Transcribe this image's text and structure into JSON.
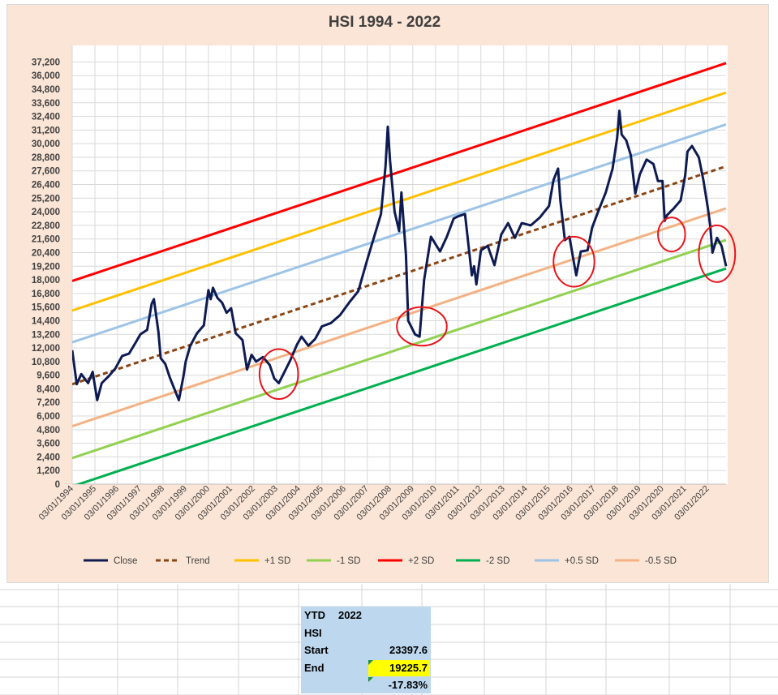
{
  "chart_data": {
    "type": "line",
    "title": "HSI  1994 - 2022",
    "y_ticks": [
      "0",
      "1,200",
      "2,400",
      "3,600",
      "4,800",
      "6,000",
      "7,200",
      "8,400",
      "9,600",
      "10,800",
      "12,000",
      "13,200",
      "14,400",
      "15,600",
      "16,800",
      "18,000",
      "19,200",
      "20,400",
      "21,600",
      "22,800",
      "24,000",
      "25,200",
      "26,400",
      "27,600",
      "28,800",
      "30,000",
      "31,200",
      "32,400",
      "33,600",
      "34,800",
      "36,000",
      "37,200"
    ],
    "ylim": [
      0,
      37800
    ],
    "xlim": [
      1994.0,
      2022.8
    ],
    "x_ticks": [
      "03/01/1994",
      "03/01/1995",
      "03/01/1996",
      "03/01/1997",
      "03/01/1998",
      "03/01/1999",
      "03/01/2000",
      "03/01/2001",
      "03/01/2002",
      "03/01/2003",
      "03/01/2004",
      "03/01/2005",
      "03/01/2006",
      "03/01/2007",
      "03/01/2008",
      "03/01/2009",
      "03/01/2010",
      "03/01/2011",
      "03/01/2012",
      "03/01/2013",
      "03/01/2014",
      "03/01/2015",
      "03/01/2016",
      "03/01/2017",
      "03/01/2018",
      "03/01/2019",
      "03/01/2020",
      "03/01/2021",
      "03/01/2022"
    ],
    "grid": true,
    "legend_position": "bottom",
    "close_color": "#0d1b52",
    "trend_color": "#8b4513",
    "circle_color": "#e8141b",
    "series": [
      {
        "name": "Close",
        "color": "#0d1b52",
        "x": [
          1994.0,
          1994.2,
          1994.4,
          1994.7,
          1994.9,
          1995.1,
          1995.3,
          1995.6,
          1995.9,
          1996.2,
          1996.5,
          1996.8,
          1997.0,
          1997.3,
          1997.5,
          1997.6,
          1997.8,
          1997.9,
          1998.1,
          1998.3,
          1998.5,
          1998.7,
          1998.9,
          1999.0,
          1999.2,
          1999.5,
          1999.8,
          2000.0,
          2000.1,
          2000.2,
          2000.4,
          2000.6,
          2000.8,
          2001.0,
          2001.2,
          2001.5,
          2001.7,
          2001.9,
          2002.1,
          2002.4,
          2002.7,
          2002.9,
          2003.1,
          2003.3,
          2003.6,
          2003.9,
          2004.1,
          2004.4,
          2004.7,
          2005.0,
          2005.4,
          2005.8,
          2006.2,
          2006.6,
          2007.0,
          2007.3,
          2007.6,
          2007.8,
          2007.9,
          2008.0,
          2008.2,
          2008.4,
          2008.5,
          2008.7,
          2008.8,
          2008.9,
          2009.1,
          2009.3,
          2009.5,
          2009.8,
          2010.2,
          2010.5,
          2010.8,
          2011.0,
          2011.3,
          2011.6,
          2011.7,
          2011.8,
          2012.0,
          2012.3,
          2012.6,
          2012.9,
          2013.2,
          2013.5,
          2013.8,
          2014.2,
          2014.6,
          2015.0,
          2015.2,
          2015.4,
          2015.5,
          2015.7,
          2015.9,
          2016.1,
          2016.2,
          2016.4,
          2016.7,
          2016.9,
          2017.2,
          2017.5,
          2017.8,
          2018.0,
          2018.1,
          2018.2,
          2018.4,
          2018.6,
          2018.8,
          2019.0,
          2019.3,
          2019.6,
          2019.8,
          2020.0,
          2020.1,
          2020.2,
          2020.5,
          2020.8,
          2021.0,
          2021.1,
          2021.3,
          2021.6,
          2021.8,
          2022.0,
          2022.1,
          2022.2,
          2022.4,
          2022.6,
          2022.8
        ],
        "y": [
          11800,
          8800,
          9700,
          8900,
          9900,
          7400,
          8900,
          9500,
          10200,
          11300,
          11500,
          12500,
          13200,
          13600,
          15900,
          16300,
          13400,
          11100,
          10600,
          9400,
          8400,
          7400,
          9500,
          10800,
          12200,
          13300,
          14000,
          17100,
          16300,
          17300,
          16400,
          16000,
          15100,
          15500,
          13300,
          12700,
          10100,
          11400,
          10800,
          11200,
          10500,
          9300,
          8900,
          9700,
          10900,
          12300,
          13000,
          12200,
          12800,
          13900,
          14200,
          14900,
          16000,
          17000,
          19800,
          21800,
          23800,
          28000,
          31500,
          28500,
          24000,
          22300,
          25700,
          20200,
          14400,
          14000,
          13200,
          13000,
          18000,
          21800,
          20500,
          21800,
          23400,
          23600,
          23800,
          18400,
          19200,
          17600,
          20600,
          21000,
          19300,
          22000,
          23000,
          21700,
          23000,
          22800,
          23500,
          24500,
          26800,
          27800,
          25000,
          21500,
          21800,
          19500,
          18400,
          20500,
          20600,
          22600,
          24200,
          25700,
          27800,
          30500,
          32900,
          30800,
          30300,
          29000,
          25600,
          27300,
          28600,
          28200,
          26700,
          26700,
          23200,
          23700,
          24300,
          25000,
          27200,
          29300,
          29800,
          28800,
          26800,
          24300,
          22800,
          20400,
          21700,
          21000,
          19200
        ]
      },
      {
        "name": "Trend",
        "color": "#8b4513",
        "x": [
          1994.0,
          2022.8
        ],
        "y": [
          8800,
          28000
        ]
      },
      {
        "name": "+1 SD",
        "color": "#ffc000",
        "x": [
          1994.0,
          2022.8
        ],
        "y": [
          15300,
          34500
        ]
      },
      {
        "name": "-1 SD",
        "color": "#92d050",
        "x": [
          1994.0,
          2022.8
        ],
        "y": [
          2300,
          21500
        ]
      },
      {
        "name": "+2 SD",
        "color": "#ff0000",
        "x": [
          1994.0,
          2022.8
        ],
        "y": [
          17900,
          37100
        ]
      },
      {
        "name": "-2 SD",
        "color": "#00b050",
        "x": [
          1994.0,
          2022.8
        ],
        "y": [
          -200,
          19000
        ]
      },
      {
        "name": "+0.5 SD",
        "color": "#9dc3e6",
        "x": [
          1994.0,
          2022.8
        ],
        "y": [
          12500,
          31700
        ]
      },
      {
        "name": "-0.5 SD",
        "color": "#f4b183",
        "x": [
          1994.0,
          2022.8
        ],
        "y": [
          5100,
          24300
        ]
      }
    ],
    "circles": [
      {
        "x": 2003.1,
        "y": 9700,
        "rx": 0.85,
        "ry": 2200
      },
      {
        "x": 2009.4,
        "y": 13900,
        "rx": 1.1,
        "ry": 1700
      },
      {
        "x": 2016.1,
        "y": 19600,
        "rx": 0.9,
        "ry": 2200
      },
      {
        "x": 2020.4,
        "y": 22000,
        "rx": 0.6,
        "ry": 1500
      },
      {
        "x": 2022.4,
        "y": 20300,
        "rx": 0.8,
        "ry": 2500
      }
    ]
  },
  "ytd_table": {
    "title_label": "YTD",
    "title_year": "2022",
    "index_label": "HSI",
    "start_label": "Start",
    "start_value": "23397.6",
    "end_label": "End",
    "end_value": "19225.7",
    "change_value": "-17.83%"
  }
}
